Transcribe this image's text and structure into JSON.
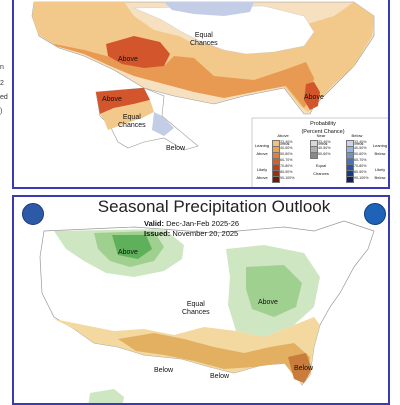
{
  "left_edge_text": [
    "n",
    "2",
    "ed",
    ")"
  ],
  "top_map": {
    "labels": {
      "equal_chances_1": "Equal",
      "equal_chances_2": "Chances",
      "above_sw": "Above",
      "above_fl": "Above",
      "above_ak": "Above",
      "equal_ak_1": "Equal",
      "equal_ak_2": "Chances",
      "below_ak": "Below"
    },
    "legend": {
      "title_line1": "Probability",
      "title_line2": "(Percent Chance)",
      "col_above": "Above\nNormal",
      "col_near": "Near\nNormal",
      "col_below": "Below\nNormal",
      "leaning_above": "Leaning\nAbove",
      "likely_above": "Likely\nAbove",
      "leaning_below": "Leaning\nBelow",
      "likely_below": "Likely\nBelow",
      "equal_chances": "Equal\nChances",
      "above_bins": [
        "33-40%",
        "40-50%",
        "50-60%",
        "60-70%",
        "70-80%",
        "80-90%",
        "90-100%"
      ],
      "near_bins": [
        "33-40%",
        "40-50%",
        "50-60%"
      ],
      "below_bins": [
        "33-40%",
        "40-50%",
        "50-60%",
        "60-70%",
        "70-80%",
        "80-90%",
        "90-100%"
      ],
      "above_colors": [
        "#f4c27a",
        "#eda254",
        "#e0803a",
        "#d0602c",
        "#b8401e",
        "#963012",
        "#6a1c08"
      ],
      "near_colors": [
        "#d8d8d8",
        "#b0b0b0",
        "#888888"
      ],
      "below_colors": [
        "#c8d4ec",
        "#9ab6e0",
        "#6e94cc",
        "#4a72b8",
        "#2c52a0",
        "#183a82",
        "#0c2060"
      ]
    }
  },
  "bottom_map": {
    "title": "Seasonal Precipitation Outlook",
    "valid_label": "Valid:",
    "valid_value": "Dec-Jan-Feb 2025-26",
    "issued_label": "Issued:",
    "issued_value": "November 20, 2025",
    "labels": {
      "above_north": "Above",
      "above_ohio": "Above",
      "equal_1": "Equal",
      "equal_2": "Chances",
      "below_sw": "Below",
      "below_gulf": "Below",
      "below_fl": "Below"
    }
  },
  "colors": {
    "panel_border": "#3b3bb0",
    "above_temp_light": "#f2c98a",
    "above_temp_mid": "#e89a52",
    "above_temp_dark": "#d2552c",
    "below_temp": "#c3cde6",
    "precip_above_light": "#cfe6c2",
    "precip_above_mid": "#9fd090",
    "precip_above_dark": "#5fb05a",
    "precip_below_light": "#f3d8a0",
    "precip_below_mid": "#e2b060",
    "precip_below_dark": "#c97c3c"
  },
  "icons": [
    "noaa-logo-icon",
    "nws-logo-icon"
  ]
}
